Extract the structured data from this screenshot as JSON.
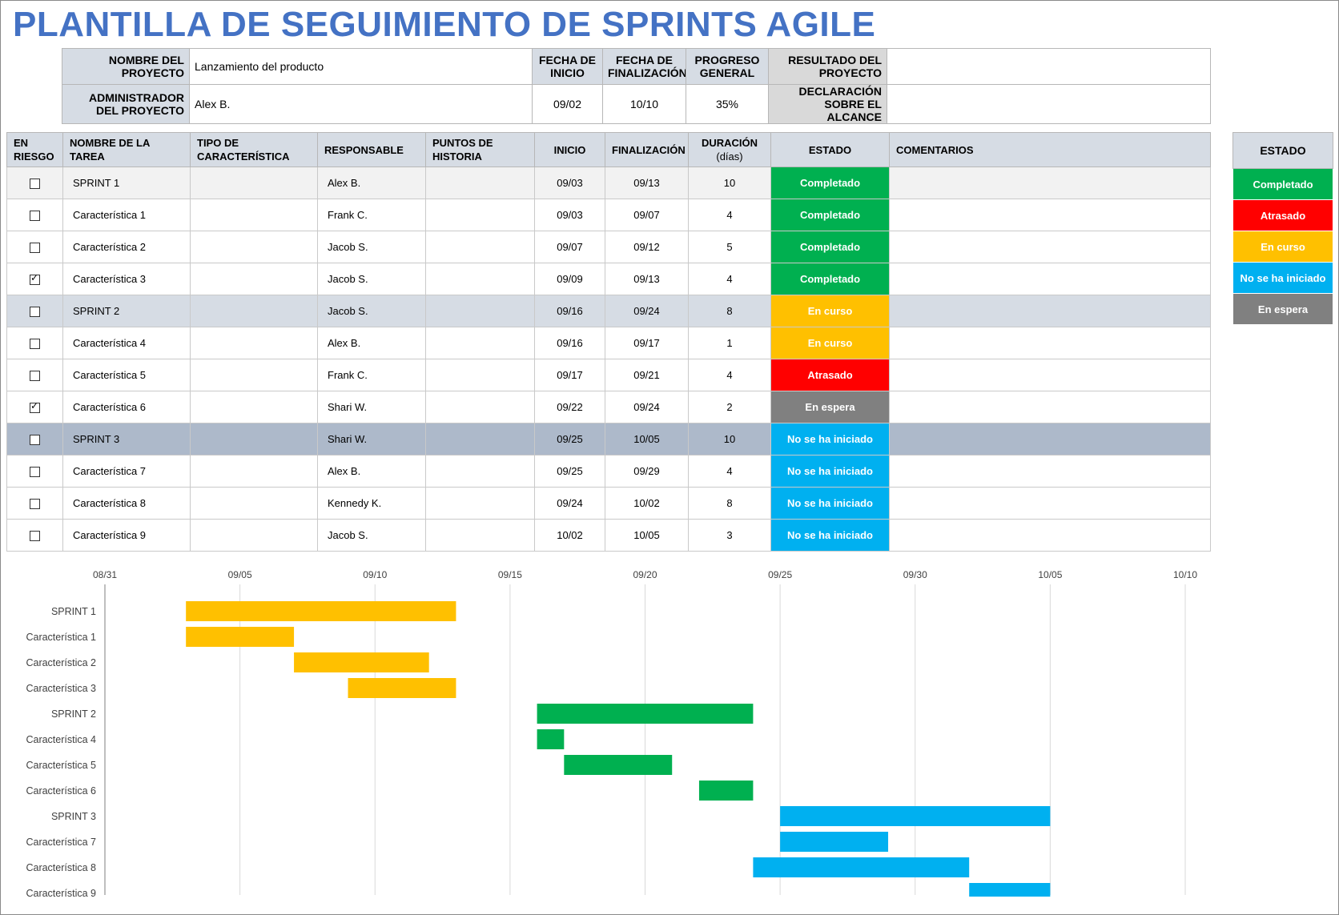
{
  "title": "PLANTILLA DE SEGUIMIENTO DE SPRINTS AGILE",
  "project": {
    "name_label": "NOMBRE DEL PROYECTO",
    "name_value": "Lanzamiento del producto",
    "admin_label": "ADMINISTRADOR DEL PROYECTO",
    "admin_value": "Alex B.",
    "start_label": "FECHA DE INICIO",
    "start_value": "09/02",
    "end_label": "FECHA DE FINALIZACIÓN",
    "end_value": "10/10",
    "progress_label": "PROGRESO GENERAL",
    "progress_value": "35%",
    "result_label": "RESULTADO DEL PROYECTO",
    "result_value": "",
    "scope_label": "DECLARACIÓN SOBRE EL ALCANCE",
    "scope_value": ""
  },
  "columns": {
    "at_risk": "EN RIESGO",
    "task": "NOMBRE DE LA TAREA",
    "type": "TIPO DE CARACTERÍSTICA",
    "owner": "RESPONSABLE",
    "points": "PUNTOS DE HISTORIA",
    "start": "INICIO",
    "end": "FINALIZACIÓN",
    "duration": "DURACIÓN",
    "duration_unit": "(días)",
    "status": "ESTADO",
    "comments": "COMENTARIOS"
  },
  "rows": [
    {
      "risk": false,
      "task": "SPRINT 1",
      "type": "",
      "owner": "Alex B.",
      "points": "",
      "start": "09/03",
      "end": "09/13",
      "duration": "10",
      "status": "Completado",
      "comments": "",
      "kind": "s1"
    },
    {
      "risk": false,
      "task": "Característica 1",
      "type": "",
      "owner": "Frank C.",
      "points": "",
      "start": "09/03",
      "end": "09/07",
      "duration": "4",
      "status": "Completado",
      "comments": "",
      "kind": ""
    },
    {
      "risk": false,
      "task": "Característica 2",
      "type": "",
      "owner": "Jacob S.",
      "points": "",
      "start": "09/07",
      "end": "09/12",
      "duration": "5",
      "status": "Completado",
      "comments": "",
      "kind": ""
    },
    {
      "risk": true,
      "task": "Característica 3",
      "type": "",
      "owner": "Jacob S.",
      "points": "",
      "start": "09/09",
      "end": "09/13",
      "duration": "4",
      "status": "Completado",
      "comments": "",
      "kind": ""
    },
    {
      "risk": false,
      "task": "SPRINT 2",
      "type": "",
      "owner": "Jacob S.",
      "points": "",
      "start": "09/16",
      "end": "09/24",
      "duration": "8",
      "status": "En curso",
      "comments": "",
      "kind": "s2"
    },
    {
      "risk": false,
      "task": "Característica 4",
      "type": "",
      "owner": "Alex B.",
      "points": "",
      "start": "09/16",
      "end": "09/17",
      "duration": "1",
      "status": "En curso",
      "comments": "",
      "kind": ""
    },
    {
      "risk": false,
      "task": "Característica 5",
      "type": "",
      "owner": "Frank C.",
      "points": "",
      "start": "09/17",
      "end": "09/21",
      "duration": "4",
      "status": "Atrasado",
      "comments": "",
      "kind": ""
    },
    {
      "risk": true,
      "task": "Característica 6",
      "type": "",
      "owner": "Shari W.",
      "points": "",
      "start": "09/22",
      "end": "09/24",
      "duration": "2",
      "status": "En espera",
      "comments": "",
      "kind": ""
    },
    {
      "risk": false,
      "task": "SPRINT 3",
      "type": "",
      "owner": "Shari W.",
      "points": "",
      "start": "09/25",
      "end": "10/05",
      "duration": "10",
      "status": "No se ha iniciado",
      "comments": "",
      "kind": "s3"
    },
    {
      "risk": false,
      "task": "Característica 7",
      "type": "",
      "owner": "Alex B.",
      "points": "",
      "start": "09/25",
      "end": "09/29",
      "duration": "4",
      "status": "No se ha iniciado",
      "comments": "",
      "kind": ""
    },
    {
      "risk": false,
      "task": "Característica 8",
      "type": "",
      "owner": "Kennedy K.",
      "points": "",
      "start": "09/24",
      "end": "10/02",
      "duration": "8",
      "status": "No se ha iniciado",
      "comments": "",
      "kind": ""
    },
    {
      "risk": false,
      "task": "Característica 9",
      "type": "",
      "owner": "Jacob S.",
      "points": "",
      "start": "10/02",
      "end": "10/05",
      "duration": "3",
      "status": "No se ha iniciado",
      "comments": "",
      "kind": ""
    }
  ],
  "legend": {
    "title": "ESTADO",
    "items": [
      {
        "label": "Completado",
        "color": "#00b050"
      },
      {
        "label": "Atrasado",
        "color": "#ff0000"
      },
      {
        "label": "En curso",
        "color": "#ffc000"
      },
      {
        "label": "No se ha iniciado",
        "color": "#00b0f0"
      },
      {
        "label": "En espera",
        "color": "#808080"
      }
    ]
  },
  "chart_data": {
    "type": "bar",
    "orientation": "horizontal-gantt",
    "x_ticks": [
      "08/31",
      "09/05",
      "09/10",
      "09/15",
      "09/20",
      "09/25",
      "09/30",
      "10/05",
      "10/10"
    ],
    "xlim": [
      "08/31",
      "10/10"
    ],
    "grid": true,
    "categories": [
      "SPRINT 1",
      "Característica 1",
      "Característica 2",
      "Característica 3",
      "SPRINT 2",
      "Característica 4",
      "Característica 5",
      "Característica 6",
      "SPRINT 3",
      "Característica 7",
      "Característica 8",
      "Característica 9"
    ],
    "start": [
      "09/03",
      "09/03",
      "09/07",
      "09/09",
      "09/16",
      "09/16",
      "09/17",
      "09/22",
      "09/25",
      "09/25",
      "09/24",
      "10/02"
    ],
    "end": [
      "09/13",
      "09/07",
      "09/12",
      "09/13",
      "09/24",
      "09/17",
      "09/21",
      "09/24",
      "10/05",
      "09/29",
      "10/02",
      "10/05"
    ],
    "colors": [
      "#ffc000",
      "#ffc000",
      "#ffc000",
      "#ffc000",
      "#00b050",
      "#00b050",
      "#00b050",
      "#00b050",
      "#00b0f0",
      "#00b0f0",
      "#00b0f0",
      "#00b0f0"
    ]
  }
}
